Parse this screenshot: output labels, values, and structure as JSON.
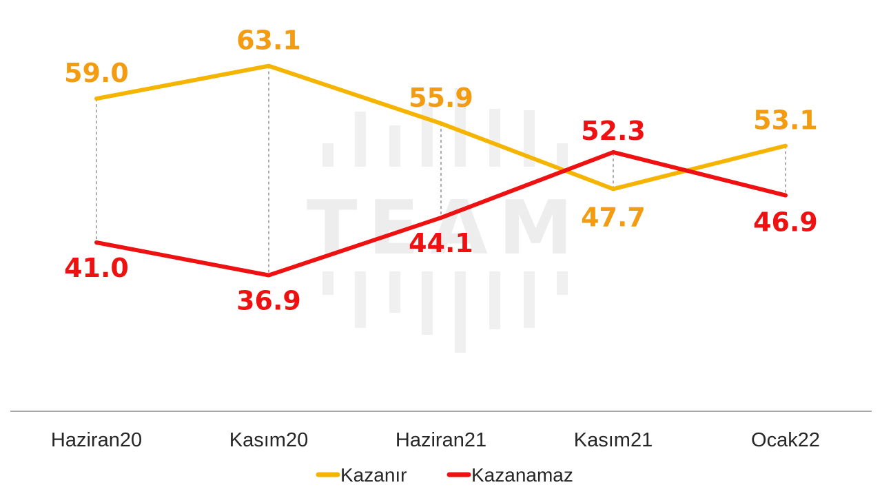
{
  "chart_data": {
    "type": "line",
    "categories": [
      "Haziran20",
      "Kasım20",
      "Haziran21",
      "Kasım21",
      "Ocak22"
    ],
    "series": [
      {
        "name": "Kazanır",
        "values": [
          59.0,
          63.1,
          55.9,
          47.7,
          53.1
        ],
        "color": "#f4b400",
        "label_color": "#f39c12"
      },
      {
        "name": "Kazanamaz",
        "values": [
          41.0,
          36.9,
          44.1,
          52.3,
          46.9
        ],
        "color": "#ee1111",
        "label_color": "#ee1111"
      }
    ],
    "value_labels": {
      "Kazanır": [
        "59.0",
        "63.1",
        "55.9",
        "47.7",
        "53.1"
      ],
      "Kazanamaz": [
        "41.0",
        "36.9",
        "44.1",
        "52.3",
        "46.9"
      ]
    },
    "legend_position": "bottom-center",
    "grid": false,
    "watermark": "TEAM"
  }
}
